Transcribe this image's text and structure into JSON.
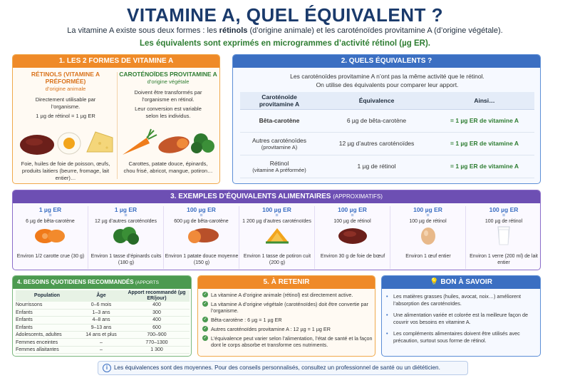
{
  "title": "VITAMINE A, QUEL ÉQUIVALENT ?",
  "intro_a": "La vitamine A existe sous deux formes : les ",
  "intro_b": "rétinols",
  "intro_c": " (d’origine animale) et les caroténoïdes provitamine A (d’origine végétale).",
  "note": "Les équivalents sont exprimés en microgrammes d’activité rétinol (µg ER).",
  "p1": {
    "header": "1. LES 2 FORMES DE VITAMINE A",
    "left": {
      "title": "RÉTINOLS (VITAMINE A PRÉFORMÉE)",
      "sub": "d’origine animale",
      "text1": "Directement utilisable par l’organisme.",
      "text2": "1 µg de rétinol = 1 µg ER",
      "foods": "Foie, huiles de foie de poisson, œufs, produits laitiers (beurre, fromage, lait entier)…"
    },
    "right": {
      "title": "CAROTÉNOÏDES PROVITAMINE A",
      "sub": "d’origine végétale",
      "text1": "Doivent être transformés par l’organisme en rétinol.",
      "text2": "Leur conversion est variable selon les individus.",
      "foods": "Carottes, patate douce, épinards, chou frisé, abricot, mangue, potiron…"
    }
  },
  "p2": {
    "header": "2. QUELS ÉQUIVALENTS ?",
    "intro1": "Les caroténoïdes provitamine A n’ont pas la même activité que le rétinol.",
    "intro2": "On utilise des équivalents pour comparer leur apport.",
    "columns": [
      "Caroténoïde provitamine A",
      "Équivalence",
      "Ainsi…"
    ],
    "rows": [
      {
        "name": "Bêta-carotène",
        "sub": "",
        "eq": "6 µg de bêta-carotène",
        "res": "= 1 µg ER de vitamine A"
      },
      {
        "name": "Autres caroténoïdes",
        "sub": "(provitamine A)",
        "eq": "12 µg d’autres caroténoïdes",
        "res": "= 1 µg ER de vitamine A"
      },
      {
        "name": "Rétinol",
        "sub": "(vitamine A préformée)",
        "eq": "1 µg de rétinol",
        "res": "= 1 µg ER de vitamine A"
      }
    ]
  },
  "p3": {
    "header": "3. EXEMPLES D’ÉQUIVALENTS ALIMENTAIRES",
    "header_small": "(APPROXIMATIFS)",
    "items": [
      {
        "er": "1 µg ER",
        "eq": "=",
        "src": "6 µg de bêta-carotène",
        "desc": "Environ 1/2 carotte crue (30 g)",
        "icon": "carrot-icon"
      },
      {
        "er": "1 µg ER",
        "eq": "=",
        "src": "12 µg d’autres caroténoïdes",
        "desc": "Environ 1 tasse d’épinards cuits (180 g)",
        "icon": "spinach-icon"
      },
      {
        "er": "100 µg ER",
        "eq": "=",
        "src": "600 µg de bêta-carotène",
        "desc": "Environ 1 patate douce moyenne (150 g)",
        "icon": "sweet-potato-icon"
      },
      {
        "er": "100 µg ER",
        "eq": "=",
        "src": "1 200 µg d’autres caroténoïdes",
        "desc": "Environ 1 tasse de potiron cuit (200 g)",
        "icon": "pumpkin-icon"
      },
      {
        "er": "100 µg ER",
        "eq": "=",
        "src": "100 µg de rétinol",
        "desc": "Environ 30 g de foie de bœuf",
        "icon": "liver-icon"
      },
      {
        "er": "100 µg ER",
        "eq": "=",
        "src": "100 µg de rétinol",
        "desc": "Environ 1 œuf entier",
        "icon": "egg-icon"
      },
      {
        "er": "100 µg ER",
        "eq": "=",
        "src": "100 µg de rétinol",
        "desc": "Environ 1 verre (200 ml) de lait entier",
        "icon": "milk-glass-icon"
      }
    ]
  },
  "p4": {
    "header": "4. BESOINS QUOTIDIENS RECOMMANDÉS",
    "header_small": "(APPORTS NUTRITIONNELS CONSEILLÉS)",
    "columns": [
      "Population",
      "Âge",
      "Apport recommandé (µg ER/jour)"
    ],
    "rows": [
      [
        "Nourrissons",
        "0–6 mois",
        "400"
      ],
      [
        "Enfants",
        "1–3 ans",
        "300"
      ],
      [
        "Enfants",
        "4–8 ans",
        "400"
      ],
      [
        "Enfants",
        "9–13 ans",
        "600"
      ],
      [
        "Adolescents, adultes",
        "14 ans et plus",
        "700–900"
      ],
      [
        "Femmes enceintes",
        "–",
        "770–1300"
      ],
      [
        "Femmes allaitantes",
        "–",
        "1 300"
      ]
    ]
  },
  "p5": {
    "header": "5. À RETENIR",
    "items": [
      "La vitamine A d’origine animale (rétinol) est directement active.",
      "La vitamine A d’origine végétale (caroténoïdes) doit être convertie par l’organisme.",
      "Bêta-carotène : 6 µg = 1 µg ER",
      "Autres caroténoïdes provitamine A : 12 µg = 1 µg ER",
      "L’équivalence peut varier selon l’alimentation, l’état de santé et la façon dont le corps absorbe et transforme ces nutriments."
    ]
  },
  "p6": {
    "header": "BON À SAVOIR",
    "items": [
      "Les matières grasses (huiles, avocat, noix…) améliorent l’absorption des caroténoïdes.",
      "Une alimentation variée et colorée est la meilleure façon de couvrir vos besoins en vitamine A.",
      "Les compléments alimentaires doivent être utilisés avec précaution, surtout sous forme de rétinol."
    ]
  },
  "footer": "Les équivalences sont des moyennes. Pour des conseils personnalisés, consultez un professionnel de santé ou un diététicien.",
  "colors": {
    "orange": "#ef8a28",
    "blue": "#3b6fc2",
    "purple": "#6d4fb3",
    "green": "#4c9a50",
    "title": "#1a3a6b"
  }
}
